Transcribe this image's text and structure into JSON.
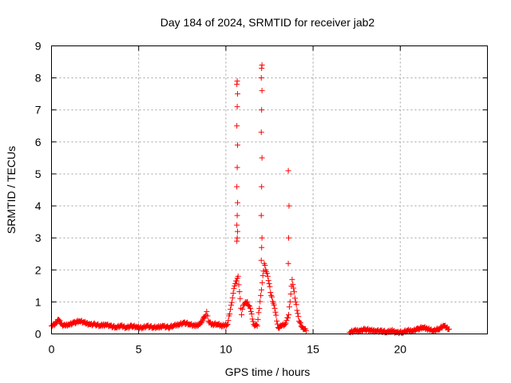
{
  "chart_data": {
    "type": "scatter",
    "title": "Day 184 of 2024, SRMTID for receiver jab2",
    "xlabel": "GPS time / hours",
    "ylabel": "SRMTID / TECUs",
    "xlim": [
      0,
      25
    ],
    "ylim": [
      0,
      9
    ],
    "xticks": [
      0,
      5,
      10,
      15,
      20
    ],
    "yticks": [
      0,
      1,
      2,
      3,
      4,
      5,
      6,
      7,
      8,
      9
    ],
    "grid": true,
    "marker": "+",
    "series": [
      {
        "name": "SRMTID",
        "color": "#ff0000",
        "segments": [
          {
            "x": [
              0.0,
              0.2,
              0.4,
              0.6,
              0.8,
              1.0,
              1.3,
              1.6,
              1.9,
              2.2,
              2.5,
              2.8,
              3.1,
              3.4,
              3.7,
              4.0,
              4.3,
              4.6,
              4.9,
              5.2,
              5.5,
              5.8,
              6.1,
              6.4,
              6.7,
              7.0,
              7.3,
              7.6,
              7.9,
              8.2,
              8.5,
              8.8,
              8.9,
              9.0,
              9.2,
              9.5,
              9.8,
              10.1,
              10.3,
              10.5,
              10.7,
              10.9,
              11.0,
              11.2,
              11.4,
              11.6,
              11.8,
              12.0,
              12.2,
              12.4,
              12.6,
              12.8,
              13.0,
              13.2,
              13.4,
              13.6,
              13.8,
              14.0,
              14.2,
              14.4,
              14.6
            ],
            "y": [
              0.25,
              0.3,
              0.45,
              0.3,
              0.25,
              0.3,
              0.35,
              0.4,
              0.35,
              0.3,
              0.3,
              0.25,
              0.3,
              0.25,
              0.2,
              0.25,
              0.2,
              0.25,
              0.2,
              0.2,
              0.25,
              0.2,
              0.2,
              0.25,
              0.2,
              0.25,
              0.3,
              0.35,
              0.3,
              0.25,
              0.3,
              0.55,
              0.7,
              0.4,
              0.3,
              0.3,
              0.25,
              0.3,
              0.9,
              1.5,
              1.8,
              0.6,
              0.9,
              1.0,
              0.8,
              0.3,
              0.25,
              1.2,
              2.2,
              1.8,
              1.2,
              0.8,
              0.2,
              0.25,
              0.3,
              0.6,
              1.7,
              1.0,
              0.4,
              0.2,
              0.1
            ]
          },
          {
            "x": [
              17.1,
              17.4,
              17.7,
              18.0,
              18.3,
              18.6,
              18.9,
              19.2,
              19.5,
              19.8,
              20.1,
              20.4,
              20.7,
              21.0,
              21.3,
              21.6,
              21.9,
              22.2,
              22.5,
              22.8
            ],
            "y": [
              0.05,
              0.1,
              0.1,
              0.15,
              0.1,
              0.1,
              0.1,
              0.05,
              0.1,
              0.05,
              0.05,
              0.1,
              0.1,
              0.15,
              0.2,
              0.15,
              0.1,
              0.15,
              0.25,
              0.15
            ]
          }
        ],
        "spikes": [
          {
            "x": 10.65,
            "y": [
              2.9,
              3.0,
              3.2,
              3.4,
              3.7,
              4.1,
              4.6,
              5.2,
              5.9,
              6.5,
              7.1,
              7.5,
              7.8,
              7.9
            ]
          },
          {
            "x": 12.05,
            "y": [
              2.3,
              2.7,
              3.0,
              3.7,
              4.6,
              5.5,
              6.3,
              7.0,
              7.6,
              8.0,
              8.3,
              8.4
            ]
          },
          {
            "x": 13.6,
            "y": [
              2.2,
              3.0,
              4.0,
              5.1
            ]
          }
        ]
      }
    ]
  }
}
